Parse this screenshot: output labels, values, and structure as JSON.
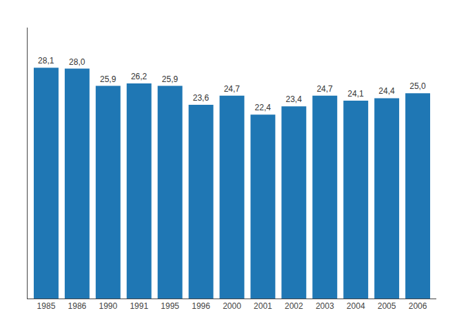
{
  "chart_data": {
    "type": "bar",
    "categories": [
      "1985",
      "1986",
      "1990",
      "1991",
      "1995",
      "1996",
      "2000",
      "2001",
      "2002",
      "2003",
      "2004",
      "2005",
      "2006"
    ],
    "values": [
      28.1,
      28.0,
      25.9,
      26.2,
      25.9,
      23.6,
      24.7,
      22.4,
      23.4,
      24.7,
      24.1,
      24.4,
      25.0
    ],
    "value_labels": [
      "28,1",
      "28,0",
      "25,9",
      "26,2",
      "25,9",
      "23,6",
      "24,7",
      "22,4",
      "23,4",
      "24,7",
      "24,1",
      "24,4",
      "25,0"
    ],
    "ylim": [
      0,
      33
    ],
    "data_labels": true,
    "tick_labels": "x",
    "grid": false
  }
}
